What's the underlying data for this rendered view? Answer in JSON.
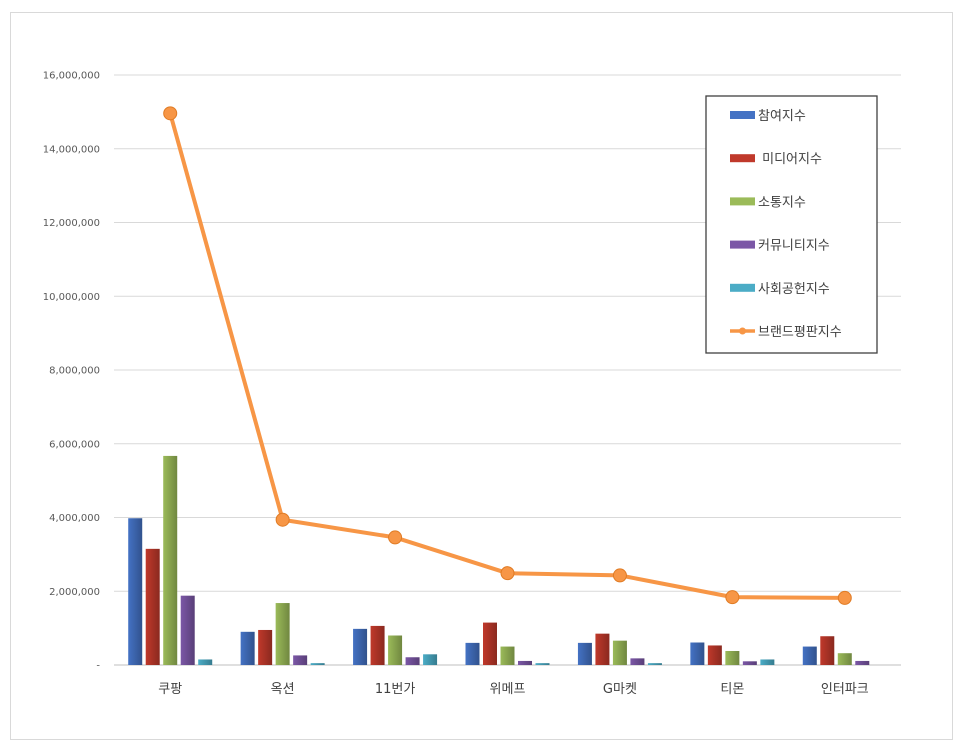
{
  "chart_data": {
    "type": "bar",
    "categories": [
      "쿠팡",
      "옥션",
      "11번가",
      "위메프",
      "G마켓",
      "티몬",
      "인터파크"
    ],
    "series": [
      {
        "name": "참여지수",
        "kind": "bar",
        "color": "#4472c4",
        "values": [
          3980000,
          900000,
          980000,
          600000,
          600000,
          610000,
          500000
        ]
      },
      {
        "name": " 미디어지수",
        "kind": "bar",
        "color": "#c0392b",
        "values": [
          3150000,
          950000,
          1060000,
          1150000,
          850000,
          530000,
          780000
        ]
      },
      {
        "name": "소통지수",
        "kind": "bar",
        "color": "#9bbb59",
        "values": [
          5670000,
          1680000,
          800000,
          500000,
          660000,
          380000,
          320000
        ]
      },
      {
        "name": "커뮤니티지수",
        "kind": "bar",
        "color": "#7b57a6",
        "values": [
          1880000,
          260000,
          210000,
          110000,
          180000,
          100000,
          110000
        ]
      },
      {
        "name": "사회공헌지수",
        "kind": "bar",
        "color": "#4bacc6",
        "values": [
          150000,
          50000,
          290000,
          50000,
          50000,
          150000,
          0
        ]
      },
      {
        "name": "브랜드평판지수",
        "kind": "line",
        "color": "#f79646",
        "values": [
          14960000,
          3940000,
          3460000,
          2490000,
          2430000,
          1840000,
          1820000
        ]
      }
    ],
    "y_ticks": [
      "-",
      "2,000,000",
      "4,000,000",
      "6,000,000",
      "8,000,000",
      "10,000,000",
      "12,000,000",
      "14,000,000",
      "16,000,000"
    ],
    "ylim": [
      0,
      16000000
    ],
    "grid": true,
    "legend_position": "top-right"
  }
}
